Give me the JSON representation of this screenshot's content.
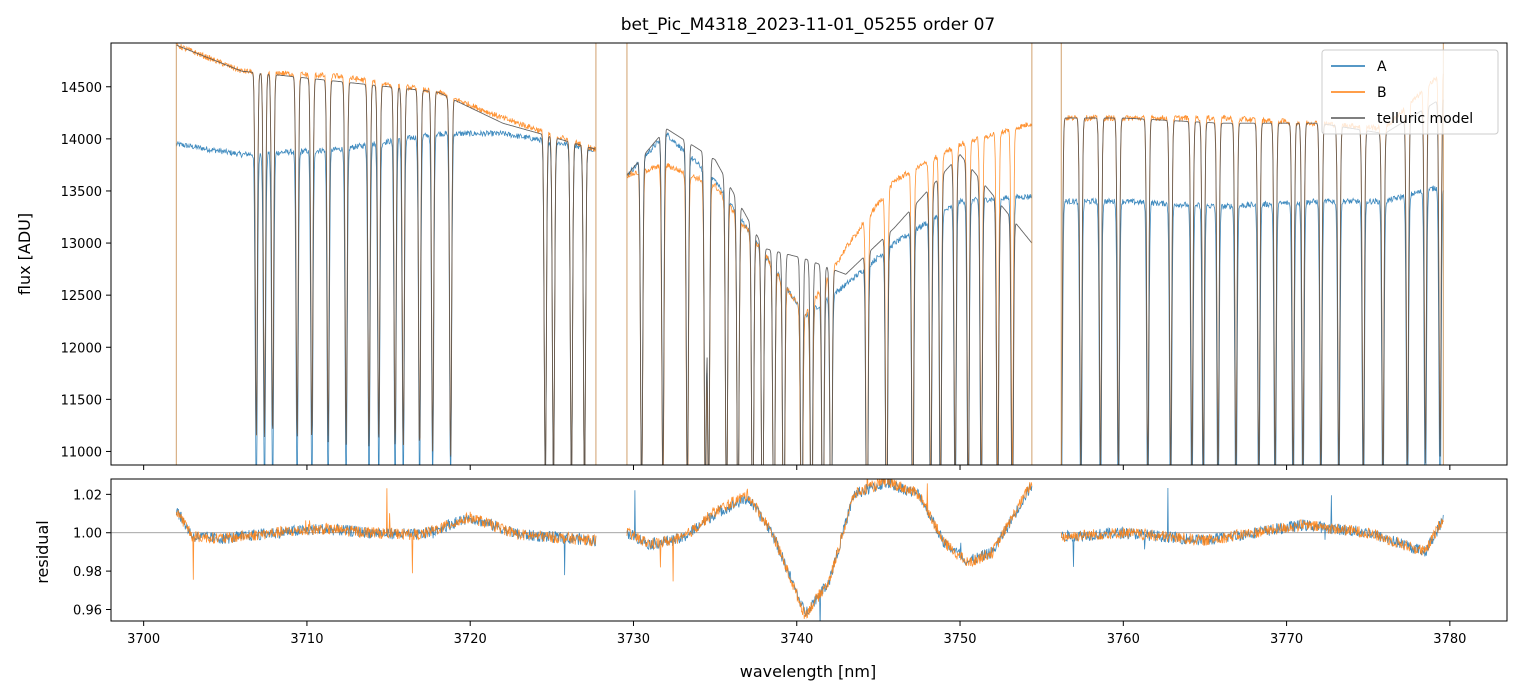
{
  "chart_data": [
    {
      "type": "line",
      "panel": "flux",
      "title": "bet_Pic_M4318_2023-11-01_05255  order 07",
      "xlabel": "",
      "ylabel": "flux [ADU]",
      "xlim": [
        3698.0,
        3783.5
      ],
      "ylim": [
        10870,
        14920
      ],
      "yticks": [
        11000,
        11500,
        12000,
        12500,
        13000,
        13500,
        14000,
        14500
      ],
      "xticks": [
        3700,
        3710,
        3720,
        3730,
        3740,
        3750,
        3760,
        3770,
        3780
      ],
      "segments": [
        [
          3702.0,
          3727.7
        ],
        [
          3729.6,
          3754.4
        ],
        [
          3756.2,
          3779.6
        ]
      ],
      "legend_position": "top-right",
      "series": [
        {
          "name": "A",
          "color": "#1f77b4",
          "x": [
            3702.0,
            3706.0,
            3712.0,
            3718.0,
            3722.0,
            3727.7,
            3729.6,
            3732.0,
            3735.0,
            3738.0,
            3740.5,
            3743.0,
            3746.0,
            3750.0,
            3754.4,
            3756.2,
            3760.0,
            3766.0,
            3772.0,
            3776.0,
            3779.6
          ],
          "y": [
            13950,
            13850,
            13900,
            14050,
            14050,
            13900,
            13650,
            14050,
            13600,
            12900,
            12300,
            12600,
            13000,
            13400,
            13450,
            13400,
            13400,
            13350,
            13400,
            13400,
            13550
          ]
        },
        {
          "name": "B",
          "color": "#ff7f0e",
          "x": [
            3702.0,
            3706.0,
            3712.0,
            3718.0,
            3722.0,
            3727.7,
            3729.6,
            3732.0,
            3735.0,
            3738.0,
            3740.5,
            3743.0,
            3746.0,
            3750.0,
            3754.4,
            3756.2,
            3760.0,
            3766.0,
            3772.0,
            3776.0,
            3779.6
          ],
          "y": [
            14900,
            14650,
            14600,
            14450,
            14200,
            13900,
            13650,
            13750,
            13550,
            12900,
            12300,
            12950,
            13600,
            13950,
            14150,
            14200,
            14200,
            14200,
            14150,
            14100,
            14650
          ]
        },
        {
          "name": "telluric model",
          "color": "#555555",
          "x": [
            3702.0,
            3706.0,
            3712.0,
            3718.0,
            3722.0,
            3727.7,
            3729.6,
            3732.0,
            3735.0,
            3738.0,
            3740.5,
            3743.0,
            3746.0,
            3750.0,
            3754.4,
            3756.2,
            3760.0,
            3766.0,
            3772.0,
            3776.0,
            3779.6
          ],
          "y": [
            14900,
            14650,
            14550,
            14450,
            14150,
            13900,
            13650,
            14100,
            13800,
            12950,
            12850,
            12700,
            13150,
            13850,
            13000,
            14200,
            14200,
            14150,
            14150,
            14050,
            14400
          ]
        }
      ],
      "absorption_lines_nm": [
        3706.9,
        3707.4,
        3707.9,
        3709.4,
        3710.3,
        3711.3,
        3712.4,
        3713.8,
        3714.4,
        3715.4,
        3715.9,
        3716.9,
        3717.7,
        3718.8,
        3724.6,
        3725.1,
        3726.2,
        3727.0,
        3730.5,
        3731.8,
        3733.3,
        3734.4,
        3734.6,
        3735.7,
        3736.4,
        3737.3,
        3737.9,
        3738.6,
        3739.2,
        3740.3,
        3740.9,
        3741.6,
        3742.1,
        3744.3,
        3745.5,
        3747.1,
        3748.2,
        3748.8,
        3749.7,
        3750.5,
        3751.3,
        3752.3,
        3753.2,
        3756.2,
        3757.4,
        3758.6,
        3759.7,
        3761.5,
        3762.9,
        3764.2,
        3764.9,
        3765.8,
        3766.9,
        3768.3,
        3769.3,
        3770.4,
        3771.0,
        3772.1,
        3773.2,
        3774.7,
        3775.9,
        3777.4,
        3778.5,
        3779.4
      ]
    },
    {
      "type": "line",
      "panel": "residual",
      "title": "",
      "xlabel": "wavelength [nm]",
      "ylabel": "residual",
      "xlim": [
        3698.0,
        3783.5
      ],
      "ylim": [
        0.954,
        1.028
      ],
      "yticks": [
        0.96,
        0.98,
        1.0,
        1.02
      ],
      "ytick_labels": [
        "0.96",
        "0.98",
        "1.00",
        "1.02"
      ],
      "xticks": [
        3700,
        3710,
        3720,
        3730,
        3740,
        3750,
        3760,
        3770,
        3780
      ],
      "reference_line": 1.0,
      "series": [
        {
          "name": "A",
          "color": "#1f77b4",
          "x": [
            3702.0,
            3703.0,
            3705.0,
            3708.0,
            3711.0,
            3714.0,
            3717.0,
            3720.0,
            3723.0,
            3727.7,
            3729.6,
            3731.0,
            3733.0,
            3735.0,
            3737.0,
            3738.5,
            3740.5,
            3742.0,
            3743.5,
            3745.5,
            3747.5,
            3749.0,
            3750.5,
            3752.0,
            3754.4,
            3756.2,
            3760.0,
            3765.0,
            3768.0,
            3771.0,
            3775.0,
            3778.5,
            3779.6
          ],
          "y": [
            1.012,
            0.998,
            0.997,
            1.0,
            1.002,
            1.0,
            0.999,
            1.008,
            0.999,
            0.996,
            1.0,
            0.994,
            0.997,
            1.01,
            1.018,
            1.0,
            0.958,
            0.975,
            1.02,
            1.026,
            1.02,
            0.995,
            0.985,
            0.99,
            1.025,
            0.998,
            1.0,
            0.996,
            1.0,
            1.004,
            1.0,
            0.99,
            1.007
          ]
        },
        {
          "name": "B",
          "color": "#ff7f0e",
          "x": [
            3702.0,
            3703.0,
            3705.0,
            3708.0,
            3711.0,
            3714.0,
            3717.0,
            3720.0,
            3723.0,
            3727.7,
            3729.6,
            3731.0,
            3733.0,
            3735.0,
            3737.0,
            3738.5,
            3740.5,
            3742.0,
            3743.5,
            3745.5,
            3747.5,
            3749.0,
            3750.5,
            3752.0,
            3754.4,
            3756.2,
            3760.0,
            3765.0,
            3768.0,
            3771.0,
            3775.0,
            3778.5,
            3779.6
          ],
          "y": [
            1.012,
            0.998,
            0.997,
            1.0,
            1.002,
            1.0,
            0.999,
            1.008,
            0.999,
            0.996,
            1.0,
            0.994,
            0.997,
            1.011,
            1.02,
            1.0,
            0.957,
            0.975,
            1.02,
            1.027,
            1.02,
            0.995,
            0.984,
            0.99,
            1.026,
            0.998,
            1.0,
            0.996,
            1.0,
            1.004,
            1.0,
            0.99,
            1.008
          ]
        }
      ]
    }
  ]
}
